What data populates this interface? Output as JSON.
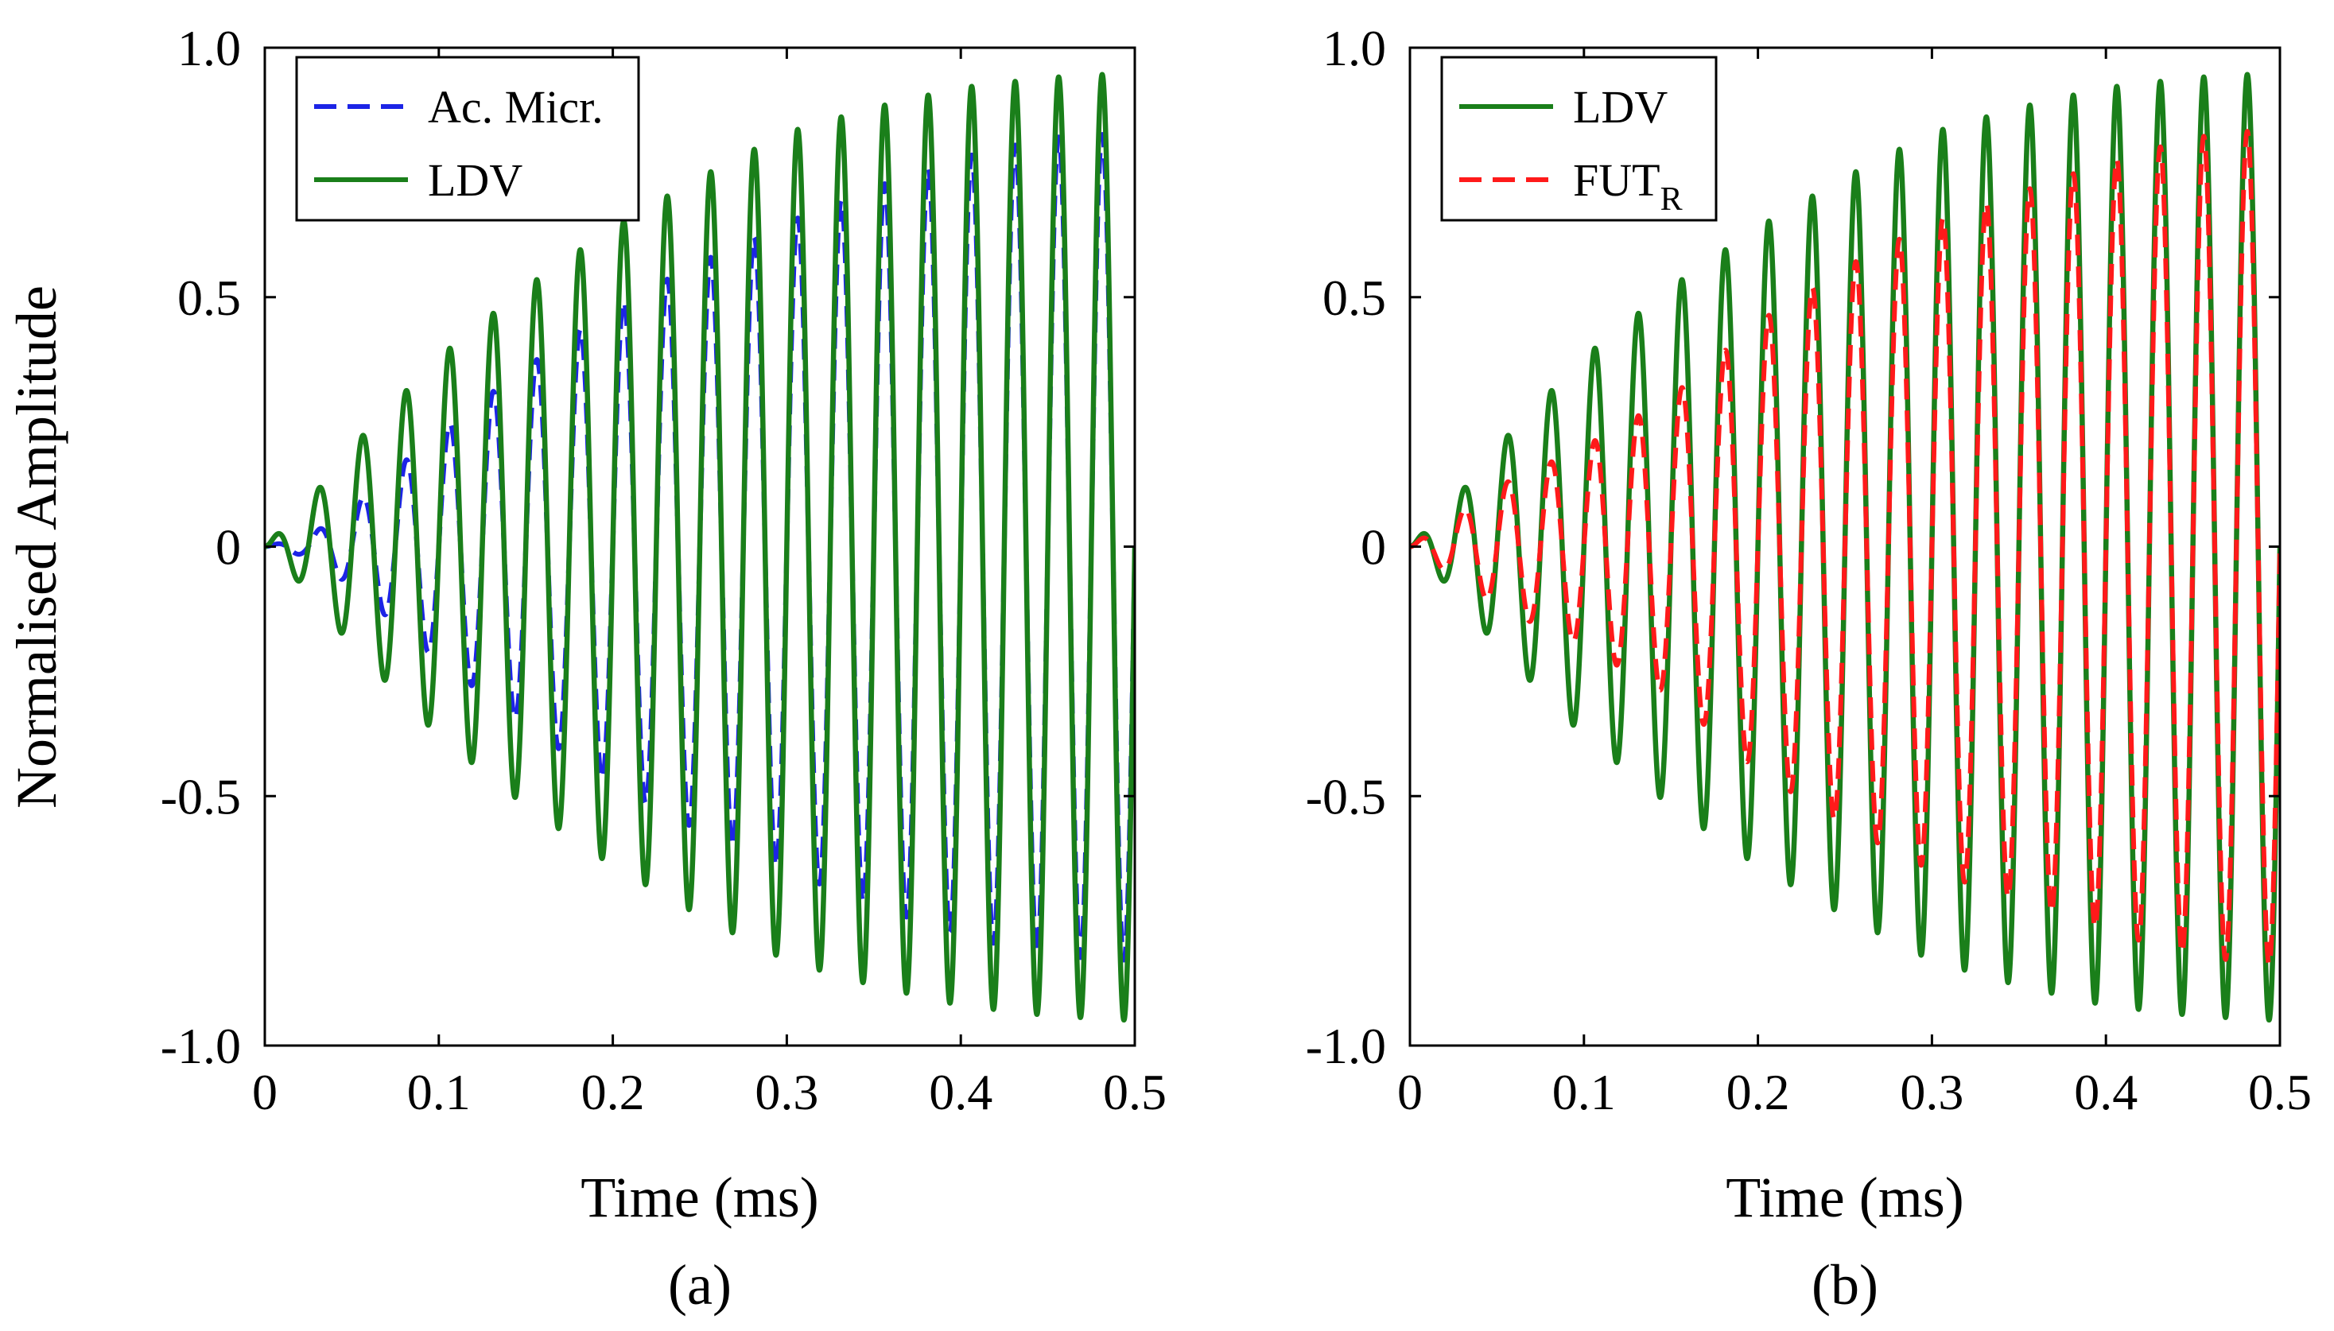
{
  "figure": {
    "ylabel": "Normalised Amplitude",
    "colors": {
      "blue": "#1c24e6",
      "green": "#1a7f1a",
      "red": "#ff1a1a"
    }
  },
  "chart_data": [
    {
      "type": "line",
      "panel_label": "(a)",
      "xlabel": "Time (ms)",
      "ylabel": "Normalised Amplitude",
      "xlim": [
        0,
        0.5
      ],
      "ylim": [
        -1.0,
        1.0
      ],
      "xticks": [
        0,
        0.1,
        0.2,
        0.3,
        0.4,
        0.5
      ],
      "xtick_labels": [
        "0",
        "0.1",
        "0.2",
        "0.3",
        "0.4",
        "0.5"
      ],
      "yticks": [
        1.0,
        0.5,
        0,
        -0.5,
        -1.0
      ],
      "ytick_labels": [
        "1.0",
        "0.5",
        "0",
        "-0.5",
        "-1.0"
      ],
      "legend_position": "top-left",
      "frequency_khz": 40,
      "series": [
        {
          "name": "Ac. Micr.",
          "name_sub": "",
          "color": "#1c24e6",
          "style": "dashed",
          "peak_envelope": [
            [
              0,
              0
            ],
            [
              0.025,
              0.02
            ],
            [
              0.05,
              0.08
            ],
            [
              0.1,
              0.23
            ],
            [
              0.15,
              0.36
            ],
            [
              0.2,
              0.48
            ],
            [
              0.25,
              0.57
            ],
            [
              0.3,
              0.65
            ],
            [
              0.35,
              0.72
            ],
            [
              0.4,
              0.78
            ],
            [
              0.45,
              0.82
            ],
            [
              0.5,
              0.83
            ]
          ]
        },
        {
          "name": "LDV",
          "name_sub": "",
          "color": "#1a7f1a",
          "style": "solid",
          "peak_envelope": [
            [
              0,
              0
            ],
            [
              0.025,
              0.09
            ],
            [
              0.05,
              0.2
            ],
            [
              0.1,
              0.38
            ],
            [
              0.15,
              0.52
            ],
            [
              0.2,
              0.64
            ],
            [
              0.25,
              0.74
            ],
            [
              0.3,
              0.83
            ],
            [
              0.35,
              0.88
            ],
            [
              0.4,
              0.92
            ],
            [
              0.45,
              0.94
            ],
            [
              0.5,
              0.95
            ]
          ]
        }
      ]
    },
    {
      "type": "line",
      "panel_label": "(b)",
      "xlabel": "Time (ms)",
      "ylabel": "",
      "xlim": [
        0,
        0.5
      ],
      "ylim": [
        -1.0,
        1.0
      ],
      "xticks": [
        0,
        0.1,
        0.2,
        0.3,
        0.4,
        0.5
      ],
      "xtick_labels": [
        "0",
        "0.1",
        "0.2",
        "0.3",
        "0.4",
        "0.5"
      ],
      "yticks": [
        1.0,
        0.5,
        0,
        -0.5,
        -1.0
      ],
      "ytick_labels": [
        "1.0",
        "0.5",
        "0",
        "-0.5",
        "-1.0"
      ],
      "legend_position": "top-left",
      "frequency_khz": 40,
      "series": [
        {
          "name": "LDV",
          "name_sub": "",
          "color": "#1a7f1a",
          "style": "solid",
          "peak_envelope": [
            [
              0,
              0
            ],
            [
              0.025,
              0.09
            ],
            [
              0.05,
              0.2
            ],
            [
              0.1,
              0.38
            ],
            [
              0.15,
              0.52
            ],
            [
              0.2,
              0.64
            ],
            [
              0.25,
              0.74
            ],
            [
              0.3,
              0.83
            ],
            [
              0.35,
              0.88
            ],
            [
              0.4,
              0.92
            ],
            [
              0.45,
              0.94
            ],
            [
              0.5,
              0.95
            ]
          ]
        },
        {
          "name": "FUT",
          "name_sub": "R",
          "color": "#ff1a1a",
          "style": "dashed",
          "peak_envelope": [
            [
              0,
              0
            ],
            [
              0.025,
              0.06
            ],
            [
              0.05,
              0.12
            ],
            [
              0.1,
              0.2
            ],
            [
              0.15,
              0.3
            ],
            [
              0.2,
              0.45
            ],
            [
              0.25,
              0.56
            ],
            [
              0.3,
              0.65
            ],
            [
              0.35,
              0.71
            ],
            [
              0.4,
              0.77
            ],
            [
              0.45,
              0.82
            ],
            [
              0.5,
              0.84
            ]
          ]
        }
      ]
    }
  ]
}
